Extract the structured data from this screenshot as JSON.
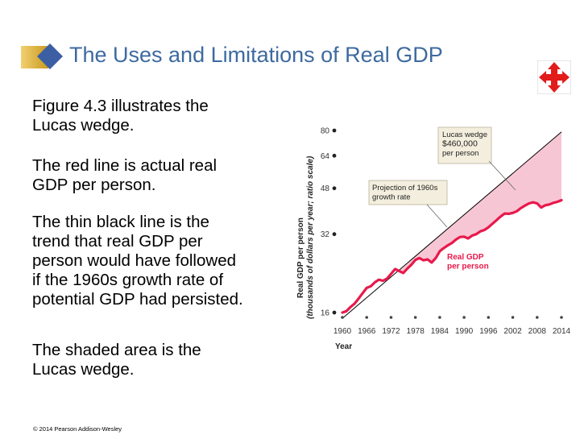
{
  "slide": {
    "title": "The Uses and Limitations of Real GDP",
    "paragraphs": [
      [
        "Figure 4.3 illustrates the",
        "Lucas wedge."
      ],
      [
        "The red line is actual real",
        "GDP per person."
      ],
      [
        "The thin black line is the",
        "trend that real GDP per",
        "person would have followed",
        "if the 1960s growth rate of",
        "potential GDP had persisted."
      ],
      [
        "The shaded area is the",
        "Lucas wedge."
      ]
    ],
    "copyright": "© 2014 Pearson Addison-Wesley",
    "nav_icon": "four-arrows-move-icon"
  },
  "chart_data": {
    "type": "line",
    "scale": "log",
    "xlabel": "Year",
    "ylabel_line1": "Real GDP per person",
    "ylabel_line2": "(thousands of dollars per year; ratio scale)",
    "xlim": [
      1960,
      2014
    ],
    "ylim": [
      16,
      80
    ],
    "xticks": [
      "1960",
      "1966",
      "1972",
      "1978",
      "1984",
      "1990",
      "1996",
      "2002",
      "2008",
      "2014"
    ],
    "yticks": [
      16,
      32,
      48,
      64,
      80
    ],
    "series": [
      {
        "name": "Real GDP per person",
        "color": "#e8194b",
        "x": [
          1960,
          1961,
          1962,
          1963,
          1964,
          1965,
          1966,
          1967,
          1968,
          1969,
          1970,
          1971,
          1972,
          1973,
          1974,
          1975,
          1976,
          1977,
          1978,
          1979,
          1980,
          1981,
          1982,
          1983,
          1984,
          1985,
          1986,
          1987,
          1988,
          1989,
          1990,
          1991,
          1992,
          1993,
          1994,
          1995,
          1996,
          1997,
          1998,
          1999,
          2000,
          2001,
          2002,
          2003,
          2004,
          2005,
          2006,
          2007,
          2008,
          2009,
          2010,
          2011,
          2012,
          2013,
          2014
        ],
        "y": [
          16.0,
          16.2,
          16.8,
          17.3,
          18.1,
          19.0,
          19.9,
          20.2,
          20.9,
          21.4,
          21.2,
          21.6,
          22.5,
          23.5,
          23.1,
          22.7,
          23.6,
          24.4,
          25.5,
          25.9,
          25.4,
          25.6,
          24.9,
          25.9,
          27.5,
          28.3,
          29.0,
          29.6,
          30.5,
          31.2,
          31.3,
          30.8,
          31.6,
          32.0,
          32.8,
          33.2,
          34.0,
          35.1,
          36.2,
          37.4,
          38.4,
          38.3,
          38.6,
          39.2,
          40.3,
          41.2,
          42.0,
          42.4,
          42.0,
          40.5,
          41.3,
          41.6,
          42.2,
          42.6,
          43.2
        ]
      },
      {
        "name": "Projection of 1960s growth rate",
        "color": "#000000",
        "x": [
          1960,
          2014
        ],
        "y": [
          15.2,
          79.0
        ]
      }
    ],
    "wedge": {
      "name": "Lucas wedge",
      "color": "#f7c6d4"
    },
    "annotations": [
      {
        "id": "lucas-wedge",
        "lines": [
          "Lucas wedge",
          "$460,000",
          "per person"
        ]
      },
      {
        "id": "projection",
        "lines": [
          "Projection of 1960s",
          "growth rate"
        ]
      },
      {
        "id": "real-gdp",
        "lines": [
          "Real GDP",
          "per person"
        ]
      }
    ]
  }
}
